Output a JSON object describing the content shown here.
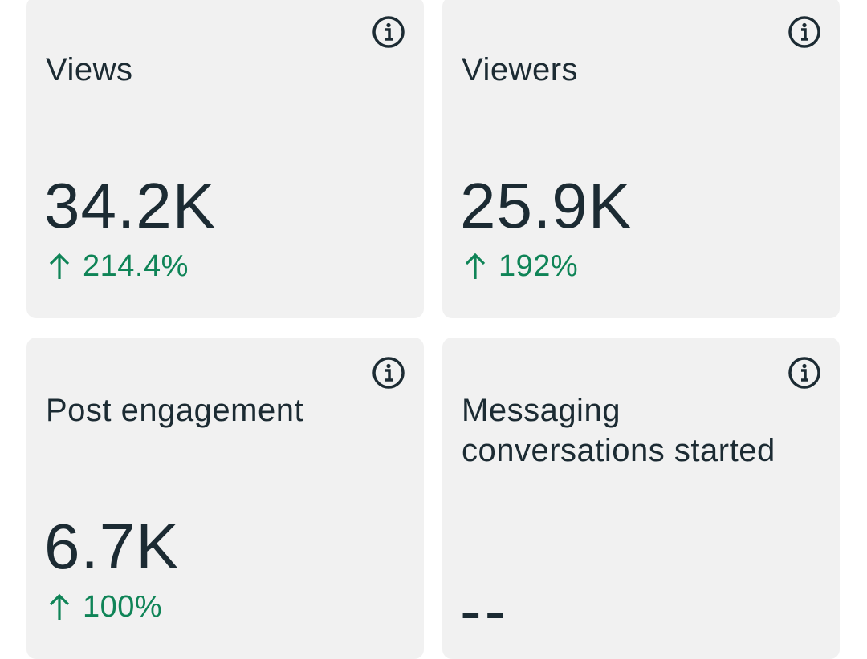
{
  "cards": [
    {
      "title": "Views",
      "value": "34.2K",
      "change": "214.4%"
    },
    {
      "title": "Viewers",
      "value": "25.9K",
      "change": "192%"
    },
    {
      "title": "Post engagement",
      "value": "6.7K",
      "change": "100%"
    },
    {
      "title": "Messaging conversations started",
      "value": "--"
    }
  ]
}
